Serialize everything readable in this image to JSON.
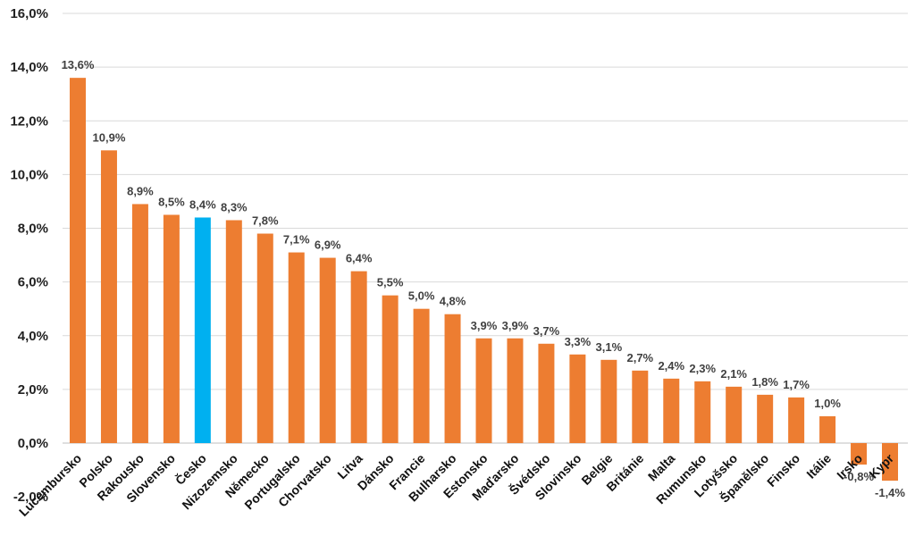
{
  "chart_data": {
    "type": "bar",
    "title": "",
    "xlabel": "",
    "ylabel": "",
    "ylim": [
      -2.0,
      16.0
    ],
    "y_ticks": [
      -2.0,
      0.0,
      2.0,
      4.0,
      6.0,
      8.0,
      10.0,
      12.0,
      14.0,
      16.0
    ],
    "y_tick_labels": [
      "-2,0%",
      "0,0%",
      "2,0%",
      "4,0%",
      "6,0%",
      "8,0%",
      "10,0%",
      "12,0%",
      "14,0%",
      "16,0%"
    ],
    "grid": true,
    "legend": "none",
    "colors": {
      "default": "#ed7d31",
      "highlight": "#00b0f0"
    },
    "highlight_category": "Česko",
    "categories": [
      "Lucembursko",
      "Polsko",
      "Rakousko",
      "Slovensko",
      "Česko",
      "Nizozemsko",
      "Německo",
      "Portugalsko",
      "Chorvatsko",
      "Litva",
      "Dánsko",
      "Francie",
      "Bulharsko",
      "Estonsko",
      "Maďarsko",
      "Švédsko",
      "Slovinsko",
      "Belgie",
      "Británie",
      "Malta",
      "Rumunsko",
      "Lotyšsko",
      "Španělsko",
      "Finsko",
      "Itálie",
      "Irsko",
      "Kypr"
    ],
    "values": [
      13.6,
      10.9,
      8.9,
      8.5,
      8.4,
      8.3,
      7.8,
      7.1,
      6.9,
      6.4,
      5.5,
      5.0,
      4.8,
      3.9,
      3.9,
      3.7,
      3.3,
      3.1,
      2.7,
      2.4,
      2.3,
      2.1,
      1.8,
      1.7,
      1.0,
      -0.8,
      -1.4
    ],
    "value_labels": [
      "13,6%",
      "10,9%",
      "8,9%",
      "8,5%",
      "8,4%",
      "8,3%",
      "7,8%",
      "7,1%",
      "6,9%",
      "6,4%",
      "5,5%",
      "5,0%",
      "4,8%",
      "3,9%",
      "3,9%",
      "3,7%",
      "3,3%",
      "3,1%",
      "2,7%",
      "2,4%",
      "2,3%",
      "2,1%",
      "1,8%",
      "1,7%",
      "1,0%",
      "-0,8%",
      "-1,4%"
    ]
  }
}
